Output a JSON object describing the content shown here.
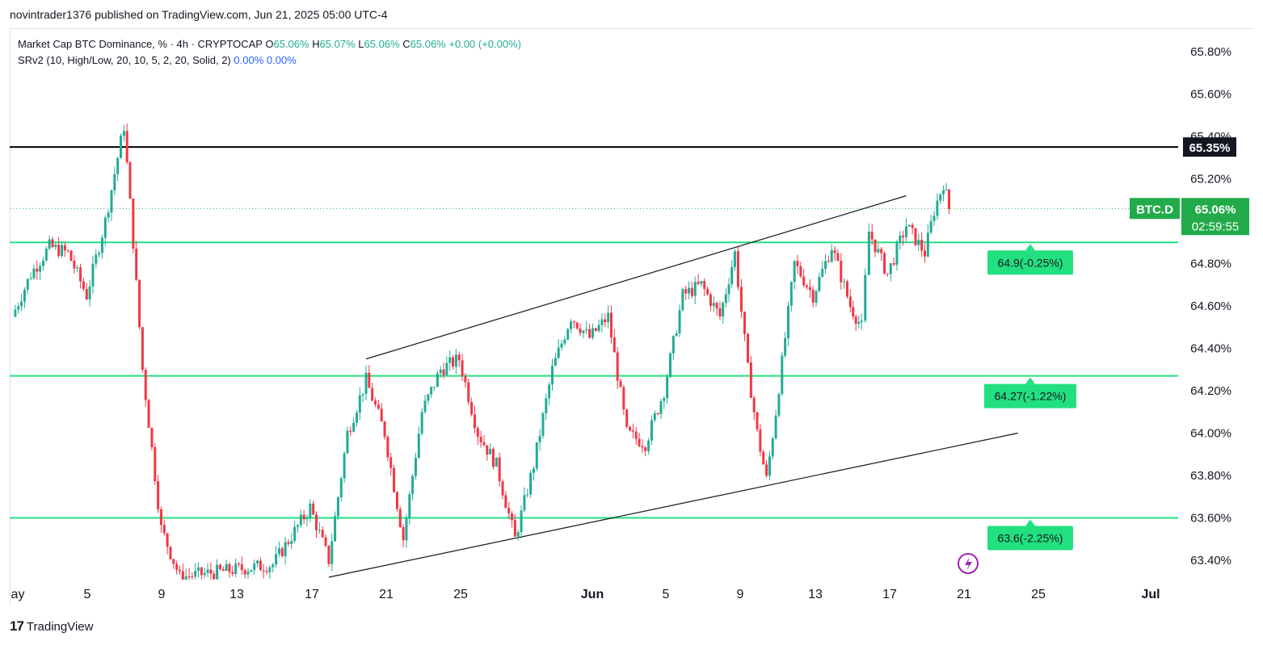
{
  "header": {
    "published_line": "novintrader1376 published on TradingView.com, Jun 21, 2025 05:00 UTC-4"
  },
  "legend": {
    "symbol_line": "Market Cap BTC Dominance, % · 4h · CRYPTOCAP",
    "open_label": "O",
    "open": "65.06%",
    "high_label": "H",
    "high": "65.07%",
    "low_label": "L",
    "low": "65.06%",
    "close_label": "C",
    "close": "65.06%",
    "change": "+0.00 (+0.00%)",
    "indicator": "SRv2 (10, High/Low, 20, 10, 5, 2, 20, Solid, 2)",
    "indicator_val1": "0.00%",
    "indicator_val2": "0.00%"
  },
  "price_axis": {
    "ticks": [
      "65.80%",
      "65.60%",
      "65.40%",
      "65.20%",
      "64.80%",
      "64.60%",
      "64.40%",
      "64.20%",
      "64.00%",
      "63.80%",
      "63.60%",
      "63.40%"
    ],
    "black_line_label": "65.35%",
    "symbol_tag": "BTC.D",
    "current_price": "65.06%",
    "countdown": "02:59:55"
  },
  "time_axis": {
    "ticks": [
      "ay",
      "5",
      "9",
      "13",
      "17",
      "21",
      "25",
      "Jun",
      "5",
      "9",
      "13",
      "17",
      "21",
      "25",
      "Jul"
    ]
  },
  "levels": [
    {
      "price": 64.9,
      "label": "64.9(-0.25%)"
    },
    {
      "price": 64.27,
      "label": "64.27(-1.22%)"
    },
    {
      "price": 63.6,
      "label": "63.6(-2.25%)"
    }
  ],
  "footer": {
    "logo_text": "TradingView"
  },
  "colors": {
    "up": "#22ab94",
    "down": "#f23645",
    "level": "#22e07f",
    "tag_green": "#22ab4a",
    "black": "#000000"
  },
  "chart_data": {
    "type": "candlestick",
    "title": "Market Cap BTC Dominance, % · 4h · CRYPTOCAP",
    "ylim": [
      63.32,
      65.9
    ],
    "resistance": 65.35,
    "last": 65.06,
    "support_levels": [
      64.9,
      64.27,
      63.6
    ],
    "channel_upper": [
      {
        "x": "May 21",
        "y": 64.35
      },
      {
        "x": "Jun 19",
        "y": 65.12
      }
    ],
    "channel_lower": [
      {
        "x": "May 19",
        "y": 63.32
      },
      {
        "x": "Jun 25",
        "y": 64.0
      }
    ],
    "path": [
      [
        "May 2",
        64.55
      ],
      [
        "May 3",
        64.75
      ],
      [
        "May 4",
        64.88
      ],
      [
        "May 5",
        64.85
      ],
      [
        "May 6",
        64.65
      ],
      [
        "May 7",
        65.0
      ],
      [
        "May 8",
        65.45
      ],
      [
        "May 8.5",
        64.9
      ],
      [
        "May 9",
        64.3
      ],
      [
        "May 10",
        63.55
      ],
      [
        "May 11",
        63.32
      ],
      [
        "May 16",
        63.38
      ],
      [
        "May 18",
        63.65
      ],
      [
        "May 19",
        63.4
      ],
      [
        "May 20",
        64.0
      ],
      [
        "May 21",
        64.25
      ],
      [
        "May 22",
        64.0
      ],
      [
        "May 23",
        63.5
      ],
      [
        "May 24",
        64.1
      ],
      [
        "May 25",
        64.3
      ],
      [
        "May 26",
        64.35
      ],
      [
        "May 27",
        64.0
      ],
      [
        "May 28",
        63.85
      ],
      [
        "May 29",
        63.5
      ],
      [
        "May 30",
        63.85
      ],
      [
        "May 31",
        64.3
      ],
      [
        "Jun 1",
        64.55
      ],
      [
        "Jun 2",
        64.45
      ],
      [
        "Jun 3",
        64.55
      ],
      [
        "Jun 4",
        64.0
      ],
      [
        "Jun 5",
        63.95
      ],
      [
        "Jun 6",
        64.2
      ],
      [
        "Jun 7",
        64.65
      ],
      [
        "Jun 8",
        64.7
      ],
      [
        "Jun 9",
        64.55
      ],
      [
        "Jun 9.8",
        64.85
      ],
      [
        "Jun 10.5",
        64.3
      ],
      [
        "Jun 11",
        64.0
      ],
      [
        "Jun 11.5",
        63.78
      ],
      [
        "Jun 12",
        64.1
      ],
      [
        "Jun 13",
        64.8
      ],
      [
        "Jun 14",
        64.65
      ],
      [
        "Jun 15",
        64.88
      ],
      [
        "Jun 16",
        64.6
      ],
      [
        "Jun 16.6",
        64.5
      ],
      [
        "Jun 17",
        64.95
      ],
      [
        "Jun 18",
        64.75
      ],
      [
        "Jun 19",
        64.98
      ],
      [
        "Jun 20",
        64.85
      ],
      [
        "Jun 20.5",
        65.05
      ],
      [
        "Jun 21",
        65.18
      ],
      [
        "Jun 21.3",
        65.06
      ]
    ]
  }
}
